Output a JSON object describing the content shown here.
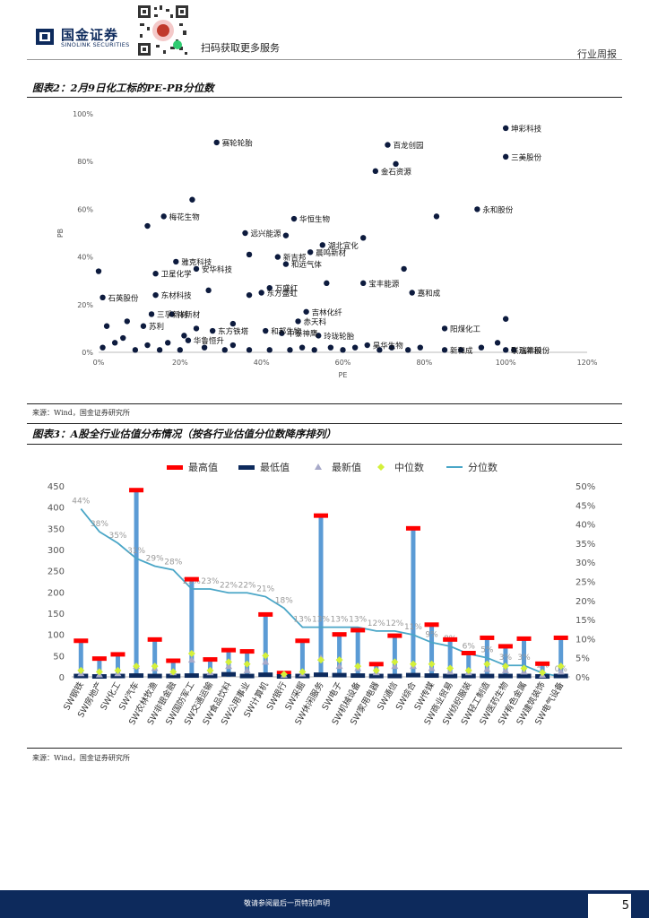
{
  "header": {
    "brand_cn": "国金证券",
    "brand_en": "SINOLINK SECURITIES",
    "qr_caption": "扫码获取更多服务",
    "section": "行业周报"
  },
  "figure2": {
    "title": "图表2：2月9日化工标的PE-PB分位数",
    "source": "来源：Wind，国金证券研究所"
  },
  "figure3": {
    "title": "图表3：A股全行业估值分布情况（按各行业估值分位数降序排列）",
    "source": "来源：Wind，国金证券研究所"
  },
  "footer": {
    "disclaimer": "敬请参阅最后一页特别声明",
    "page": "5"
  },
  "chart_data": [
    {
      "type": "scatter",
      "xlabel": "PE",
      "ylabel": "PB",
      "xlim": [
        0,
        120
      ],
      "ylim": [
        0,
        100
      ],
      "xticks": [
        "0%",
        "20%",
        "40%",
        "60%",
        "80%",
        "100%",
        "120%"
      ],
      "yticks": [
        "0%",
        "20%",
        "40%",
        "60%",
        "80%",
        "100%"
      ],
      "points": [
        {
          "x": 100,
          "y": 94,
          "label": "坤彩科技"
        },
        {
          "x": 29,
          "y": 88,
          "label": "赛轮轮胎"
        },
        {
          "x": 71,
          "y": 87,
          "label": "百龙创园"
        },
        {
          "x": 100,
          "y": 82,
          "label": "三美股份"
        },
        {
          "x": 73,
          "y": 79,
          "label": ""
        },
        {
          "x": 68,
          "y": 76,
          "label": "金石资源"
        },
        {
          "x": 23,
          "y": 64,
          "label": ""
        },
        {
          "x": 93,
          "y": 60,
          "label": "永和股份"
        },
        {
          "x": 16,
          "y": 57,
          "label": "梅花生物"
        },
        {
          "x": 83,
          "y": 57,
          "label": ""
        },
        {
          "x": 48,
          "y": 56,
          "label": "华恒生物"
        },
        {
          "x": 12,
          "y": 53,
          "label": ""
        },
        {
          "x": 36,
          "y": 50,
          "label": "远兴能源"
        },
        {
          "x": 46,
          "y": 49,
          "label": ""
        },
        {
          "x": 65,
          "y": 48,
          "label": ""
        },
        {
          "x": 55,
          "y": 45,
          "label": "湖北宜化"
        },
        {
          "x": 52,
          "y": 42,
          "label": "晨鸣新材"
        },
        {
          "x": 37,
          "y": 41,
          "label": ""
        },
        {
          "x": 44,
          "y": 40,
          "label": "新吉邦"
        },
        {
          "x": 46,
          "y": 37,
          "label": "和远气体"
        },
        {
          "x": 19,
          "y": 38,
          "label": "雅克科技"
        },
        {
          "x": 24,
          "y": 35,
          "label": "安华科技"
        },
        {
          "x": 75,
          "y": 35,
          "label": ""
        },
        {
          "x": 0,
          "y": 34,
          "label": ""
        },
        {
          "x": 14,
          "y": 33,
          "label": "卫星化学"
        },
        {
          "x": 56,
          "y": 29,
          "label": ""
        },
        {
          "x": 65,
          "y": 29,
          "label": "宝丰能源"
        },
        {
          "x": 42,
          "y": 27,
          "label": "万盛红"
        },
        {
          "x": 27,
          "y": 26,
          "label": ""
        },
        {
          "x": 40,
          "y": 25,
          "label": "东方盛虹"
        },
        {
          "x": 77,
          "y": 25,
          "label": "嘉和成"
        },
        {
          "x": 14,
          "y": 24,
          "label": "东材科技"
        },
        {
          "x": 37,
          "y": 24,
          "label": ""
        },
        {
          "x": 1,
          "y": 23,
          "label": "石英股份"
        },
        {
          "x": 51,
          "y": 17,
          "label": "吉林化纤"
        },
        {
          "x": 13,
          "y": 16,
          "label": "三孚新材"
        },
        {
          "x": 18,
          "y": 16,
          "label": "祥新材"
        },
        {
          "x": 100,
          "y": 14,
          "label": ""
        },
        {
          "x": 49,
          "y": 13,
          "label": "赤天科"
        },
        {
          "x": 7,
          "y": 13,
          "label": ""
        },
        {
          "x": 2,
          "y": 11,
          "label": ""
        },
        {
          "x": 33,
          "y": 12,
          "label": ""
        },
        {
          "x": 11,
          "y": 11,
          "label": "苏利"
        },
        {
          "x": 85,
          "y": 10,
          "label": "阳煤化工"
        },
        {
          "x": 24,
          "y": 10,
          "label": ""
        },
        {
          "x": 28,
          "y": 9,
          "label": "东方铁塔"
        },
        {
          "x": 41,
          "y": 9,
          "label": "和邦生物"
        },
        {
          "x": 45,
          "y": 8,
          "label": "中泰神鹰"
        },
        {
          "x": 54,
          "y": 7,
          "label": "玲珑轮胎"
        },
        {
          "x": 21,
          "y": 7,
          "label": ""
        },
        {
          "x": 6,
          "y": 6,
          "label": ""
        },
        {
          "x": 22,
          "y": 5,
          "label": "华鲁恒升"
        },
        {
          "x": 98,
          "y": 4,
          "label": ""
        },
        {
          "x": 66,
          "y": 3,
          "label": "昊华生物"
        },
        {
          "x": 33,
          "y": 3,
          "label": ""
        },
        {
          "x": 57,
          "y": 2,
          "label": ""
        },
        {
          "x": 72,
          "y": 2,
          "label": ""
        },
        {
          "x": 85,
          "y": 1,
          "label": "新和成"
        },
        {
          "x": 100,
          "y": 1,
          "label": "联泓新科"
        },
        {
          "x": 102,
          "y": 1,
          "label": "瑞丰股份"
        },
        {
          "x": 1,
          "y": 2,
          "label": ""
        },
        {
          "x": 9,
          "y": 1,
          "label": ""
        },
        {
          "x": 15,
          "y": 1,
          "label": ""
        },
        {
          "x": 20,
          "y": 1,
          "label": ""
        },
        {
          "x": 26,
          "y": 2,
          "label": ""
        },
        {
          "x": 31,
          "y": 1,
          "label": ""
        },
        {
          "x": 37,
          "y": 1,
          "label": ""
        },
        {
          "x": 42,
          "y": 1,
          "label": ""
        },
        {
          "x": 47,
          "y": 1,
          "label": ""
        },
        {
          "x": 50,
          "y": 2,
          "label": ""
        },
        {
          "x": 53,
          "y": 1,
          "label": ""
        },
        {
          "x": 60,
          "y": 1,
          "label": ""
        },
        {
          "x": 63,
          "y": 2,
          "label": ""
        },
        {
          "x": 69,
          "y": 1,
          "label": ""
        },
        {
          "x": 76,
          "y": 1,
          "label": ""
        },
        {
          "x": 79,
          "y": 2,
          "label": ""
        },
        {
          "x": 89,
          "y": 1,
          "label": ""
        },
        {
          "x": 94,
          "y": 2,
          "label": ""
        },
        {
          "x": 4,
          "y": 4,
          "label": ""
        },
        {
          "x": 12,
          "y": 3,
          "label": ""
        },
        {
          "x": 17,
          "y": 4,
          "label": ""
        }
      ]
    },
    {
      "type": "bar",
      "legend": [
        "最高值",
        "最低值",
        "最新值",
        "中位数",
        "分位数"
      ],
      "categories": [
        "SW钢铁",
        "SW房地产",
        "SW化工",
        "SW汽车",
        "SW农林牧渔",
        "SW非银金融",
        "SW国防军工",
        "SW交通运输",
        "SW食品饮料",
        "SW公用事业",
        "SW计算机",
        "SW银行",
        "SW采掘",
        "SW休闲服务",
        "SW电子",
        "SW机械设备",
        "SW家用电器",
        "SW通信",
        "SW综合",
        "SW传媒",
        "SW商业贸易",
        "SW纺织服装",
        "SW轻工制造",
        "SW医药生物",
        "SW有色金属",
        "SW建筑装饰",
        "SW电气设备"
      ],
      "y_left": [
        0,
        450
      ],
      "y_left_ticks": [
        "0",
        "50",
        "100",
        "150",
        "200",
        "250",
        "300",
        "350",
        "400",
        "450"
      ],
      "y_right_ticks": [
        "0%",
        "5%",
        "10%",
        "15%",
        "20%",
        "25%",
        "30%",
        "35%",
        "40%",
        "45%",
        "50%"
      ],
      "series": [
        {
          "name": "最高值",
          "values": [
            85,
            43,
            53,
            440,
            88,
            38,
            230,
            41,
            63,
            60,
            147,
            9,
            85,
            380,
            100,
            110,
            30,
            97,
            350,
            123,
            88,
            56,
            92,
            72,
            90,
            31,
            92
          ]
        },
        {
          "name": "最低值",
          "values": [
            2,
            1,
            2,
            3,
            2,
            2,
            3,
            2,
            6,
            2,
            5,
            1,
            2,
            5,
            4,
            3,
            2,
            2,
            4,
            3,
            2,
            2,
            2,
            2,
            2,
            1,
            2
          ]
        },
        {
          "name": "最新值",
          "values": [
            8,
            5,
            8,
            25,
            20,
            10,
            40,
            10,
            25,
            15,
            35,
            4,
            7,
            45,
            25,
            20,
            10,
            25,
            25,
            20,
            12,
            10,
            18,
            15,
            12,
            4,
            12
          ]
        },
        {
          "name": "中位数",
          "values": [
            15,
            12,
            15,
            25,
            25,
            12,
            55,
            15,
            35,
            30,
            50,
            6,
            12,
            40,
            40,
            25,
            15,
            35,
            30,
            30,
            20,
            15,
            30,
            25,
            20,
            10,
            25
          ]
        },
        {
          "name": "分位数",
          "values": [
            44,
            38,
            35,
            31,
            29,
            28,
            23,
            23,
            22,
            22,
            21,
            18,
            13,
            13,
            13,
            13,
            12,
            12,
            11,
            9,
            8,
            6,
            5,
            3,
            3,
            1,
            0
          ]
        }
      ],
      "percent_labels": [
        "44%",
        "38%",
        "35%",
        "31%",
        "29%",
        "28%",
        "23%",
        "23%",
        "22%",
        "22%",
        "21%",
        "18%",
        "13%",
        "13%",
        "13%",
        "13%",
        "12%",
        "12%",
        "11%",
        "9%",
        "8%",
        "6%",
        "5%",
        "3%",
        "3%",
        "1%",
        "0%"
      ]
    }
  ]
}
